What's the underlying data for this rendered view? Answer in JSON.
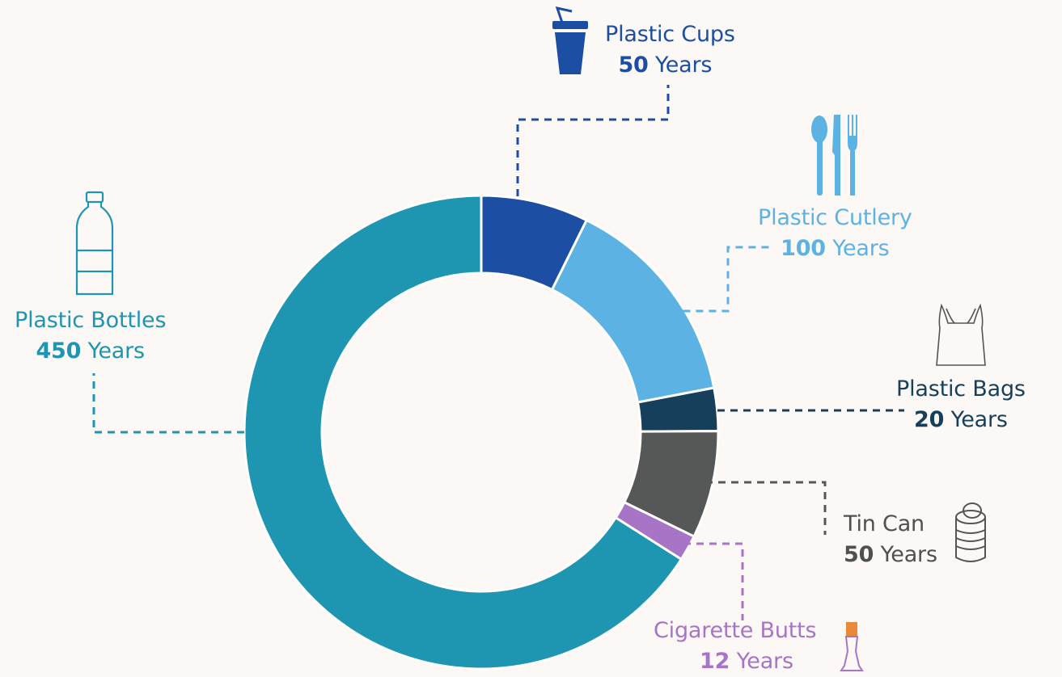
{
  "chart_data": {
    "type": "pie",
    "donut": true,
    "unit": "Years",
    "series": [
      {
        "name": "Plastic Cups",
        "value": 50,
        "color": "#1c4ea3",
        "icon": "cup-with-straw-icon"
      },
      {
        "name": "Plastic Cutlery",
        "value": 100,
        "color": "#5cb2e3",
        "icon": "cutlery-icon"
      },
      {
        "name": "Plastic Bags",
        "value": 20,
        "color": "#163f5c",
        "icon": "plastic-bag-icon"
      },
      {
        "name": "Tin Can",
        "value": 50,
        "color": "#565757",
        "icon": "tin-can-icon"
      },
      {
        "name": "Cigarette Butts",
        "value": 12,
        "color": "#a874c6",
        "icon": "cigarette-butt-icon"
      },
      {
        "name": "Plastic Bottles",
        "value": 450,
        "color": "#1e95b1",
        "icon": "plastic-bottle-icon"
      }
    ]
  }
}
